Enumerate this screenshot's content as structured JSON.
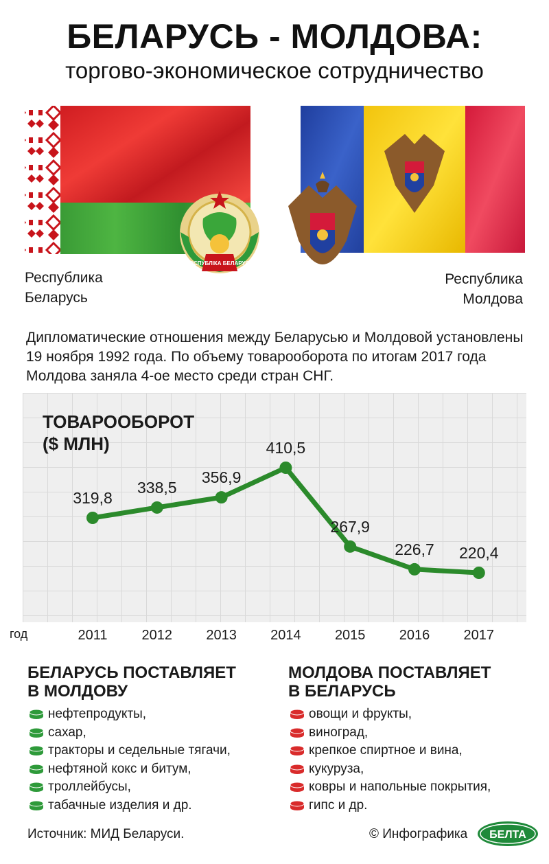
{
  "header": {
    "title": "БЕЛАРУСЬ - МОЛДОВА:",
    "subtitle": "торгово-экономическое сотрудничество"
  },
  "countries": {
    "left_line1": "Республика",
    "left_line2": "Беларусь",
    "right_line1": "Республика",
    "right_line2": "Молдова"
  },
  "emblems": {
    "belarus_ribbon": "РЭСПУБЛІКА БЕЛАРУСЬ"
  },
  "intro": {
    "text": "Дипломатические отношения между Беларусью и Молдовой установлены 19 ноября 1992 года. По объему товарооборота по итогам 2017 года Молдова заняла 4-ое место среди стран СНГ."
  },
  "chart_data": {
    "type": "line",
    "title_line1": "ТОВАРООБОРОТ",
    "title_line2": "($ МЛН)",
    "xlabel": "год",
    "categories": [
      "2011",
      "2012",
      "2013",
      "2014",
      "2015",
      "2016",
      "2017"
    ],
    "values": [
      319.8,
      338.5,
      356.9,
      410.5,
      267.9,
      226.7,
      220.4
    ],
    "value_labels": [
      "319,8",
      "338,5",
      "356,9",
      "410,5",
      "267,9",
      "226,7",
      "220,4"
    ],
    "ylim": [
      200,
      430
    ],
    "grid": true,
    "series_color": "#2b8a2b"
  },
  "exports_by": {
    "title_line1": "БЕЛАРУСЬ ПОСТАВЛЯЕТ",
    "title_line2": "В МОЛДОВУ",
    "color": "#2e9a3a",
    "items": [
      "нефтепродукты,",
      "сахар,",
      "тракторы и седельные тягачи,",
      "нефтяной кокс и битум,",
      "троллейбусы,",
      "табачные изделия и др."
    ]
  },
  "exports_md": {
    "title_line1": "МОЛДОВА ПОСТАВЛЯЕТ",
    "title_line2": "В БЕЛАРУСЬ",
    "color": "#d92b2b",
    "items": [
      "овощи и фрукты,",
      "виноград,",
      "крепкое спиртное и вина,",
      "кукуруза,",
      "ковры и напольные покрытия,",
      "гипс и др."
    ]
  },
  "footer": {
    "source": "Источник: МИД Беларуси.",
    "credit": "© Инфографика",
    "logo_text": "БЕЛТА"
  }
}
